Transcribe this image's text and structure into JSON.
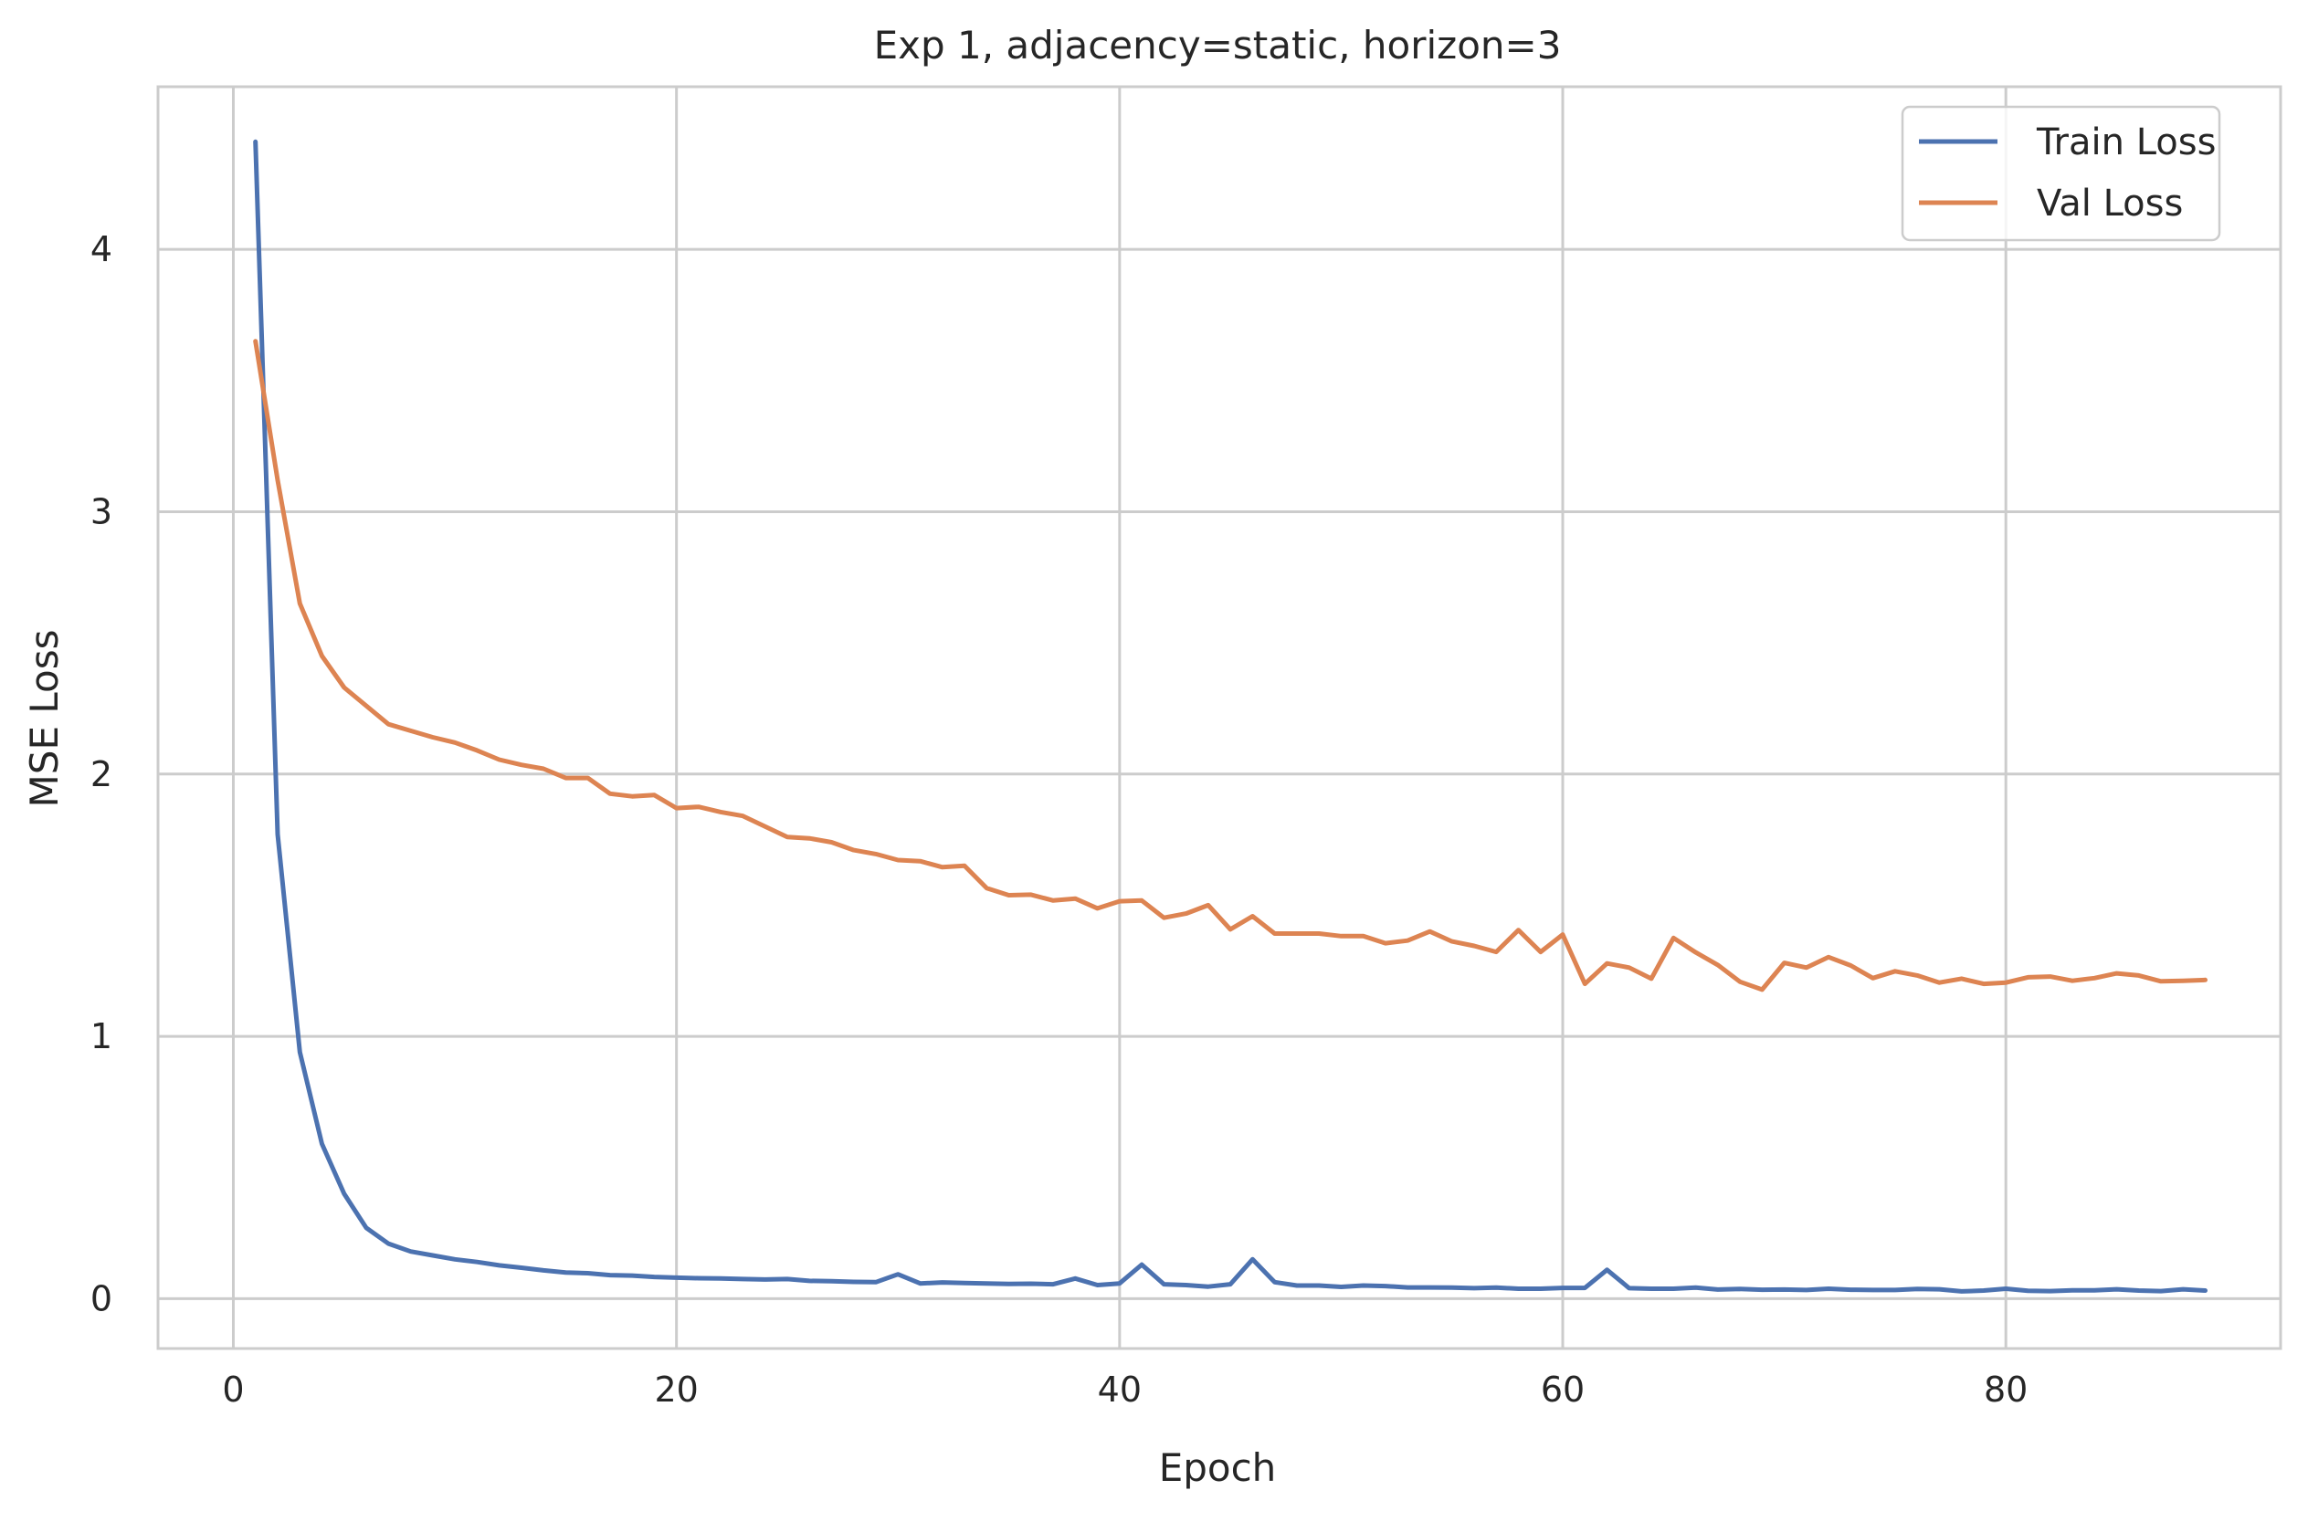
{
  "chart_data": {
    "type": "line",
    "title": "Exp 1, adjacency=static, horizon=3",
    "xlabel": "Epoch",
    "ylabel": "MSE Loss",
    "xlim": [
      -3.4,
      92.4
    ],
    "ylim": [
      -0.19,
      4.62
    ],
    "xticks": [
      0,
      20,
      40,
      60,
      80
    ],
    "yticks": [
      0,
      1,
      2,
      3,
      4
    ],
    "grid": true,
    "legend_position": "top-right",
    "colors": {
      "Train Loss": "#4c72b0",
      "Val Loss": "#dd8452",
      "grid": "#cccccc",
      "frame": "#cccccc"
    },
    "x": [
      1,
      2,
      3,
      4,
      5,
      6,
      7,
      8,
      9,
      10,
      11,
      12,
      13,
      14,
      15,
      16,
      17,
      18,
      19,
      20,
      21,
      22,
      23,
      24,
      25,
      26,
      27,
      28,
      29,
      30,
      31,
      32,
      33,
      34,
      35,
      36,
      37,
      38,
      39,
      40,
      41,
      42,
      43,
      44,
      45,
      46,
      47,
      48,
      49,
      50,
      51,
      52,
      53,
      54,
      55,
      56,
      57,
      58,
      59,
      60,
      61,
      62,
      63,
      64,
      65,
      66,
      67,
      68,
      69,
      70,
      71,
      72,
      73,
      74,
      75,
      76,
      77,
      78,
      79,
      80,
      81,
      82,
      83,
      84,
      85,
      86,
      87,
      88,
      89
    ],
    "series": [
      {
        "name": "Train Loss",
        "values": [
          4.41,
          1.77,
          0.94,
          0.59,
          0.4,
          0.27,
          0.21,
          0.18,
          0.165,
          0.15,
          0.14,
          0.127,
          0.118,
          0.108,
          0.1,
          0.097,
          0.09,
          0.088,
          0.083,
          0.08,
          0.078,
          0.077,
          0.075,
          0.073,
          0.075,
          0.068,
          0.067,
          0.064,
          0.063,
          0.093,
          0.058,
          0.062,
          0.06,
          0.058,
          0.056,
          0.057,
          0.055,
          0.077,
          0.052,
          0.058,
          0.13,
          0.055,
          0.052,
          0.046,
          0.055,
          0.15,
          0.063,
          0.05,
          0.05,
          0.045,
          0.05,
          0.048,
          0.043,
          0.043,
          0.042,
          0.04,
          0.042,
          0.038,
          0.038,
          0.041,
          0.041,
          0.11,
          0.04,
          0.038,
          0.038,
          0.042,
          0.035,
          0.037,
          0.034,
          0.035,
          0.033,
          0.038,
          0.034,
          0.033,
          0.033,
          0.037,
          0.036,
          0.028,
          0.031,
          0.038,
          0.03,
          0.029,
          0.032,
          0.032,
          0.036,
          0.031,
          0.029,
          0.036,
          0.031
        ]
      },
      {
        "name": "Val Loss",
        "values": [
          3.65,
          3.12,
          2.65,
          2.45,
          2.33,
          2.26,
          2.19,
          2.165,
          2.14,
          2.12,
          2.09,
          2.055,
          2.035,
          2.02,
          1.985,
          1.985,
          1.925,
          1.915,
          1.92,
          1.87,
          1.875,
          1.855,
          1.84,
          1.8,
          1.76,
          1.755,
          1.74,
          1.71,
          1.695,
          1.672,
          1.668,
          1.645,
          1.65,
          1.565,
          1.538,
          1.54,
          1.518,
          1.525,
          1.488,
          1.515,
          1.518,
          1.452,
          1.468,
          1.5,
          1.408,
          1.458,
          1.392,
          1.392,
          1.392,
          1.382,
          1.382,
          1.355,
          1.365,
          1.4,
          1.362,
          1.345,
          1.322,
          1.405,
          1.322,
          1.388,
          1.2,
          1.278,
          1.262,
          1.22,
          1.375,
          1.32,
          1.272,
          1.208,
          1.178,
          1.28,
          1.262,
          1.302,
          1.27,
          1.222,
          1.248,
          1.232,
          1.205,
          1.22,
          1.2,
          1.205,
          1.225,
          1.228,
          1.212,
          1.222,
          1.24,
          1.232,
          1.21,
          1.212,
          1.215
        ]
      }
    ]
  }
}
